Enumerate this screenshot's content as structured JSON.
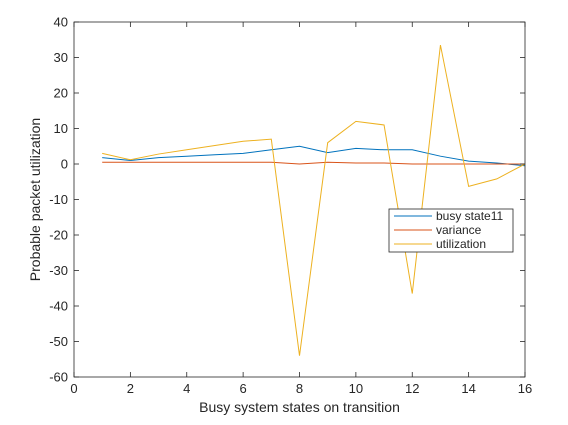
{
  "chart_data": {
    "type": "line",
    "xlabel": "Busy system states on transition",
    "ylabel": "Probable packet utilization",
    "xlim": [
      0,
      16
    ],
    "ylim": [
      -60,
      40
    ],
    "xticks": [
      0,
      2,
      4,
      6,
      8,
      10,
      12,
      14,
      16
    ],
    "yticks": [
      -60,
      -50,
      -40,
      -30,
      -20,
      -10,
      0,
      10,
      20,
      30,
      40
    ],
    "grid": false,
    "legend_position": "center-right",
    "series": [
      {
        "name": "busy state11",
        "color": "#0072bd",
        "x": [
          1,
          2,
          3,
          4,
          5,
          6,
          7,
          8,
          9,
          10,
          11,
          12,
          13,
          14,
          15,
          16
        ],
        "y": [
          1.8,
          1.0,
          1.8,
          2.2,
          2.6,
          3.0,
          4.0,
          5.0,
          3.2,
          4.4,
          4.0,
          4.0,
          2.2,
          0.8,
          0.3,
          -0.5
        ]
      },
      {
        "name": "variance",
        "color": "#d95319",
        "x": [
          1,
          2,
          3,
          4,
          5,
          6,
          7,
          8,
          9,
          10,
          11,
          12,
          13,
          14,
          15,
          16
        ],
        "y": [
          0.5,
          0.5,
          0.5,
          0.5,
          0.5,
          0.5,
          0.5,
          0.0,
          0.5,
          0.3,
          0.3,
          0.0,
          0.0,
          0.0,
          0.0,
          0.0
        ]
      },
      {
        "name": "utilization",
        "color": "#edb120",
        "x": [
          1,
          2,
          3,
          4,
          5,
          6,
          7,
          8,
          9,
          10,
          11,
          12,
          13,
          14,
          15,
          16
        ],
        "y": [
          3.0,
          1.2,
          2.8,
          4.0,
          5.2,
          6.4,
          7.0,
          -54.0,
          6.0,
          12.0,
          11.0,
          -36.5,
          33.5,
          -6.3,
          -4.2,
          0.0
        ]
      }
    ]
  }
}
